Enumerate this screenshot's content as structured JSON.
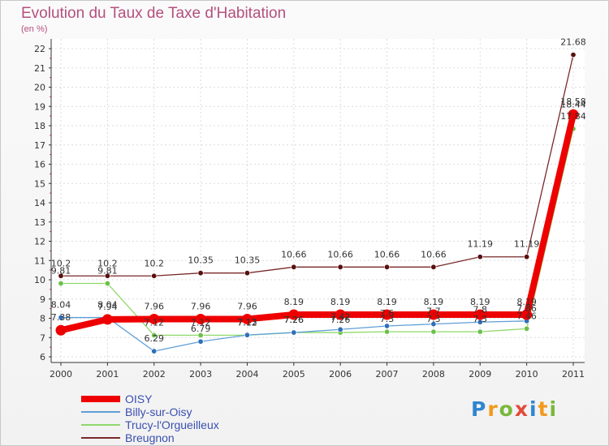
{
  "title": "Evolution du Taux de Taxe d'Habitation",
  "unit_label": "(en %)",
  "brand": "Proxiti",
  "chart_data": {
    "type": "line",
    "title": "Evolution du Taux de Taxe d'Habitation",
    "ylabel": "(en %)",
    "x": [
      "2000",
      "2001",
      "2002",
      "2003",
      "2004",
      "2005",
      "2006",
      "2007",
      "2008",
      "2009",
      "2010",
      "2011"
    ],
    "ylim": [
      6,
      22
    ],
    "yticks": [
      6,
      7,
      8,
      9,
      10,
      11,
      12,
      13,
      14,
      15,
      16,
      17,
      18,
      19,
      20,
      21,
      22
    ],
    "series": [
      {
        "name": "Breugnon",
        "color": "#7a2a2a",
        "marker": "#5a1010",
        "width": 1.3,
        "values": [
          10.2,
          10.2,
          10.2,
          10.35,
          10.35,
          10.66,
          10.66,
          10.66,
          10.66,
          11.19,
          11.19,
          21.68
        ],
        "labels": [
          "10.2",
          "10.2",
          "10.2",
          "10.35",
          "10.35",
          "10.66",
          "10.66",
          "10.66",
          "10.66",
          "11.19",
          "11.19",
          "21.68"
        ]
      },
      {
        "name": "Trucy-l'Orgueilleux",
        "color": "#8fd86a",
        "marker": "#6cc04a",
        "width": 1.3,
        "values": [
          9.81,
          9.81,
          7.12,
          7.12,
          7.12,
          7.26,
          7.26,
          7.3,
          7.3,
          7.3,
          7.46,
          17.84
        ],
        "labels": [
          "9.81",
          "9.81",
          "7.12",
          "7.12",
          "7.12",
          "7.26",
          "7.26",
          "7.3",
          "7.3",
          "7.3",
          "7.46",
          "17.84"
        ]
      },
      {
        "name": "Billy-sur-Oisy",
        "color": "#5f9fd6",
        "marker": "#2f6fba",
        "width": 1.3,
        "values": [
          8.04,
          8.04,
          6.29,
          6.79,
          7.13,
          7.26,
          7.42,
          7.6,
          7.7,
          7.8,
          7.86,
          18.44
        ],
        "labels": [
          "8.04",
          "8.04",
          "6.29",
          "6.79",
          "7.13",
          "7.26",
          "7.42",
          "7.6",
          "7.7",
          "7.8",
          "7.86",
          "18.44"
        ]
      },
      {
        "name": "OISY",
        "color": "#ee0000",
        "marker": "#ee0000",
        "width": 8,
        "values": [
          7.38,
          7.94,
          7.96,
          7.96,
          7.96,
          8.19,
          8.19,
          8.19,
          8.19,
          8.19,
          8.19,
          18.58
        ],
        "labels": [
          "7.38",
          "7.94",
          "7.96",
          "7.96",
          "7.96",
          "8.19",
          "8.19",
          "8.19",
          "8.19",
          "8.19",
          "8.19",
          "18.58"
        ]
      }
    ],
    "legend": [
      "OISY",
      "Billy-sur-Oisy",
      "Trucy-l'Orgueilleux",
      "Breugnon"
    ]
  }
}
